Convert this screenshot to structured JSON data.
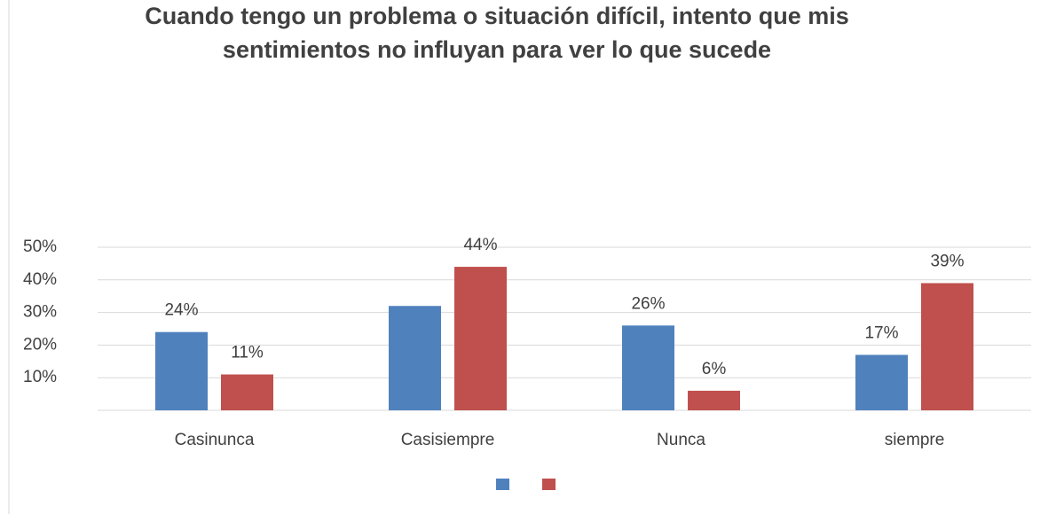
{
  "chart_data": {
    "type": "bar",
    "title": [
      "Cuando tengo un problema o situación difícil, intento que mis",
      "sentimientos no influyan para ver lo que sucede"
    ],
    "categories": [
      "Casinunca",
      "Casisiempre",
      "Nunca",
      "siempre"
    ],
    "series": [
      {
        "color": "#4f81bd",
        "values": [
          24,
          32,
          26,
          17
        ],
        "value_labels": [
          "24%",
          null,
          "26%",
          "17%"
        ]
      },
      {
        "color": "#c0504d",
        "values": [
          11,
          44,
          6,
          39
        ],
        "value_labels": [
          "11%",
          "44%",
          "6%",
          "39%"
        ]
      }
    ],
    "ylim": [
      0,
      50
    ],
    "yticks": [
      {
        "value": 10,
        "label": "10%"
      },
      {
        "value": 20,
        "label": "20%"
      },
      {
        "value": 30,
        "label": "30%"
      },
      {
        "value": 40,
        "label": "40%"
      },
      {
        "value": 50,
        "label": "50%"
      }
    ],
    "grid": true
  }
}
